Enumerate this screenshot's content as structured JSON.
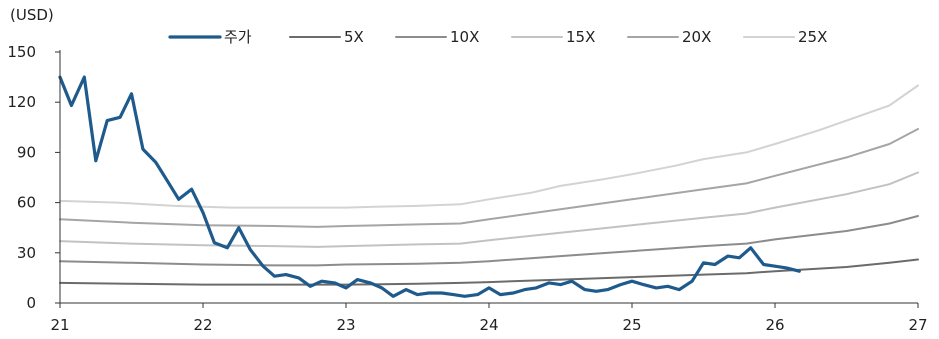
{
  "chart_data": {
    "type": "line",
    "unit_label": "(USD)",
    "ylim": [
      0,
      150
    ],
    "yticks": [
      0,
      30,
      60,
      90,
      120,
      150
    ],
    "xlim": [
      21,
      27
    ],
    "xticks": [
      21,
      22,
      23,
      24,
      25,
      26,
      27
    ],
    "grid": false,
    "legend_position": "top",
    "series": [
      {
        "name": "주가",
        "color": "#1f5a8c",
        "width": 3.2,
        "x": [
          21.0,
          21.08,
          21.17,
          21.25,
          21.33,
          21.42,
          21.5,
          21.58,
          21.67,
          21.75,
          21.83,
          21.92,
          22.0,
          22.08,
          22.17,
          22.25,
          22.33,
          22.42,
          22.5,
          22.58,
          22.67,
          22.75,
          22.83,
          22.92,
          23.0,
          23.08,
          23.17,
          23.25,
          23.33,
          23.42,
          23.5,
          23.58,
          23.67,
          23.75,
          23.83,
          23.92,
          24.0,
          24.08,
          24.17,
          24.25,
          24.33,
          24.42,
          24.5,
          24.58,
          24.67,
          24.75,
          24.83,
          24.92,
          25.0,
          25.08,
          25.17,
          25.25,
          25.33,
          25.42,
          25.5,
          25.58,
          25.67,
          25.75,
          25.83,
          25.92,
          26.0,
          26.08,
          26.17
        ],
        "values": [
          135,
          118,
          135,
          85,
          109,
          111,
          125,
          92,
          84,
          73,
          62,
          68,
          54,
          36,
          33,
          45,
          32,
          22,
          16,
          17,
          15,
          10,
          13,
          12,
          9,
          14,
          12,
          9,
          4,
          8,
          5,
          6,
          6,
          5,
          4,
          5,
          9,
          5,
          6,
          8,
          9,
          12,
          11,
          13,
          8,
          7,
          8,
          11,
          13,
          11,
          9,
          10,
          8,
          13,
          24,
          23,
          28,
          27,
          33,
          23,
          22,
          21,
          19
        ]
      },
      {
        "name": "5X",
        "color": "#6b6b6b",
        "width": 2,
        "x": [
          21.0,
          21.5,
          22.0,
          22.5,
          22.8,
          23.0,
          23.5,
          23.8,
          24.0,
          24.5,
          25.0,
          25.5,
          25.8,
          26.0,
          26.5,
          26.8,
          27.0
        ],
        "values": [
          12,
          11.5,
          11,
          11,
          11,
          11,
          11.5,
          12,
          12.5,
          14,
          15.5,
          17,
          17.8,
          19,
          21.5,
          24,
          26
        ]
      },
      {
        "name": "10X",
        "color": "#8c8c8c",
        "width": 2,
        "x": [
          21.0,
          21.5,
          22.0,
          22.5,
          22.8,
          23.0,
          23.5,
          23.8,
          24.0,
          24.5,
          25.0,
          25.5,
          25.8,
          26.0,
          26.5,
          26.8,
          27.0
        ],
        "values": [
          25,
          24,
          23,
          22.5,
          22.5,
          23,
          23.5,
          24,
          25,
          28,
          31,
          34,
          35.5,
          38,
          43,
          47.5,
          52
        ]
      },
      {
        "name": "15X",
        "color": "#c2c2c2",
        "width": 2,
        "x": [
          21.0,
          21.5,
          22.0,
          22.5,
          22.8,
          23.0,
          23.5,
          23.8,
          24.0,
          24.5,
          25.0,
          25.5,
          25.8,
          26.0,
          26.5,
          26.8,
          27.0
        ],
        "values": [
          37,
          35.5,
          34.5,
          34,
          33.5,
          34,
          35,
          35.5,
          37.5,
          42,
          46.5,
          51,
          53.5,
          57,
          65,
          71,
          78
        ]
      },
      {
        "name": "20X",
        "color": "#a5a5a5",
        "width": 2,
        "x": [
          21.0,
          21.5,
          22.0,
          22.5,
          22.8,
          23.0,
          23.5,
          23.8,
          24.0,
          24.5,
          25.0,
          25.5,
          25.8,
          26.0,
          26.5,
          26.8,
          27.0
        ],
        "values": [
          50,
          48,
          46.5,
          46,
          45.5,
          46,
          47,
          47.5,
          50,
          56,
          62,
          68,
          71.5,
          76,
          87,
          95,
          104
        ]
      },
      {
        "name": "25X",
        "color": "#d3d3d3",
        "width": 2,
        "x": [
          21.0,
          21.2,
          21.4,
          21.6,
          21.8,
          22.0,
          22.2,
          22.5,
          22.8,
          23.0,
          23.2,
          23.5,
          23.8,
          24.0,
          24.3,
          24.5,
          24.8,
          25.0,
          25.3,
          25.5,
          25.8,
          26.0,
          26.3,
          26.5,
          26.8,
          27.0
        ],
        "values": [
          61,
          60.5,
          60,
          59,
          58,
          57.5,
          57,
          57,
          57,
          57,
          57.5,
          58,
          59,
          62,
          66,
          70,
          74,
          77,
          82,
          86,
          90,
          95,
          103,
          109,
          118,
          130
        ]
      }
    ]
  }
}
